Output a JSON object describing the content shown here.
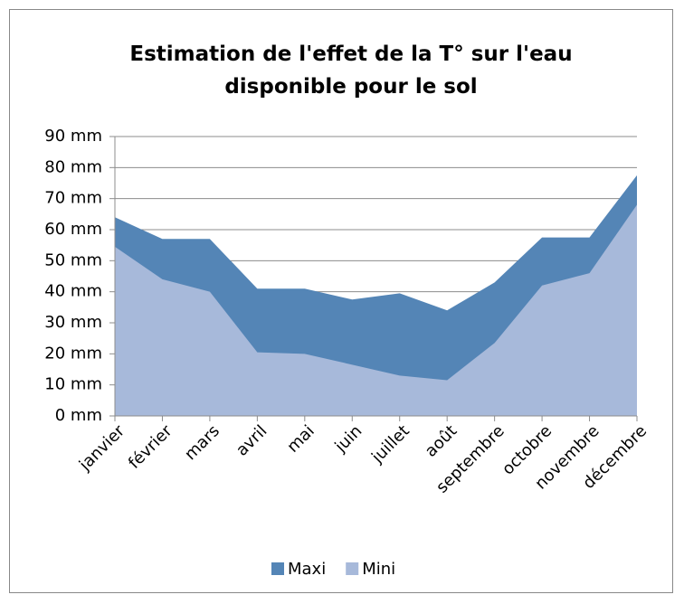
{
  "chart_data": {
    "type": "area",
    "title": "Estimation de l'effet de la T° sur l'eau disponible pour le sol",
    "categories": [
      "janvier",
      "février",
      "mars",
      "avril",
      "mai",
      "juin",
      "juillet",
      "août",
      "septembre",
      "octobre",
      "novembre",
      "décembre"
    ],
    "series": [
      {
        "name": "Maxi",
        "color": "#5485b6",
        "values": [
          64,
          57,
          57,
          41,
          41,
          37.5,
          39.5,
          34,
          43,
          57.5,
          57.5,
          77.5
        ]
      },
      {
        "name": "Mini",
        "color": "#a7b9da",
        "values": [
          54.5,
          44,
          40,
          20.5,
          20,
          16.5,
          13,
          11.5,
          23.5,
          42,
          46,
          68
        ]
      }
    ],
    "ylim": [
      0,
      90
    ],
    "yticks": [
      {
        "value": 0,
        "label": "0 mm"
      },
      {
        "value": 10,
        "label": "10 mm"
      },
      {
        "value": 20,
        "label": "20 mm"
      },
      {
        "value": 30,
        "label": "30 mm"
      },
      {
        "value": 40,
        "label": "40 mm"
      },
      {
        "value": 50,
        "label": "50 mm"
      },
      {
        "value": 60,
        "label": "60 mm"
      },
      {
        "value": 70,
        "label": "70 mm"
      },
      {
        "value": 80,
        "label": "80 mm"
      },
      {
        "value": 90,
        "label": "90 mm"
      }
    ],
    "grid": true,
    "legend": "bottom"
  }
}
